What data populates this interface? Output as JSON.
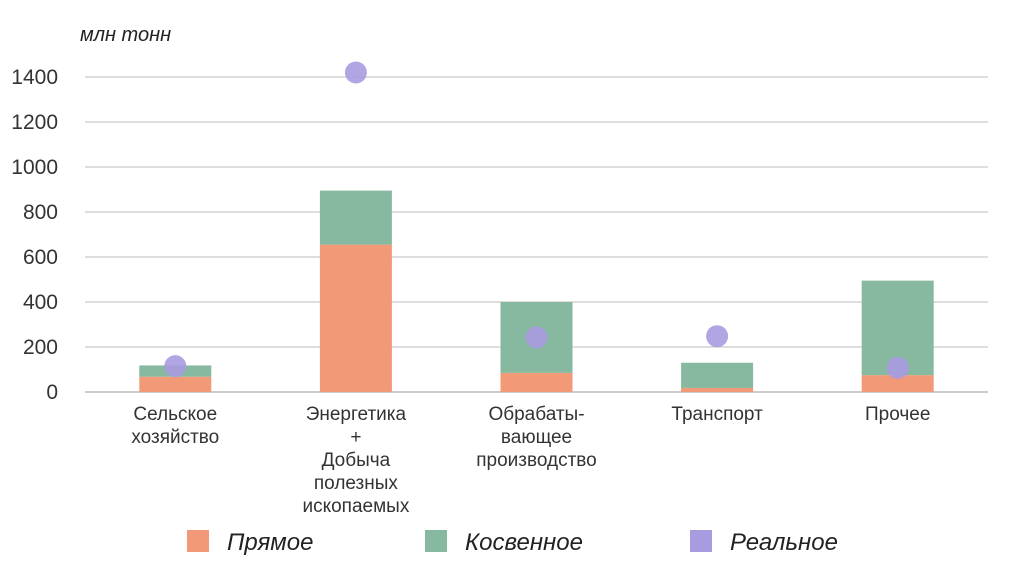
{
  "chart_data": {
    "type": "bar",
    "stacked": true,
    "unit_label": "млн тонн",
    "ylim": [
      0,
      1400
    ],
    "yticks": [
      0,
      200,
      400,
      600,
      800,
      1000,
      1200,
      1400
    ],
    "grid": true,
    "legend_position": "bottom",
    "categories": [
      [
        "Сельское",
        "хозяйство"
      ],
      [
        "Энергетика",
        "+",
        "Добыча",
        "полезных",
        "ископаемых"
      ],
      [
        "Обрабаты-",
        "вающее",
        "производство"
      ],
      [
        "Транспорт"
      ],
      [
        "Прочее"
      ]
    ],
    "series": [
      {
        "name": "Прямое",
        "kind": "bar",
        "color": "#f29a78",
        "values": [
          68,
          655,
          85,
          18,
          75
        ]
      },
      {
        "name": "Косвенное",
        "kind": "bar",
        "color": "#86b99f",
        "values": [
          50,
          240,
          315,
          112,
          420
        ]
      },
      {
        "name": "Реальное",
        "kind": "point",
        "color": "#a99be0",
        "values": [
          115,
          1420,
          243,
          248,
          107
        ]
      }
    ]
  }
}
